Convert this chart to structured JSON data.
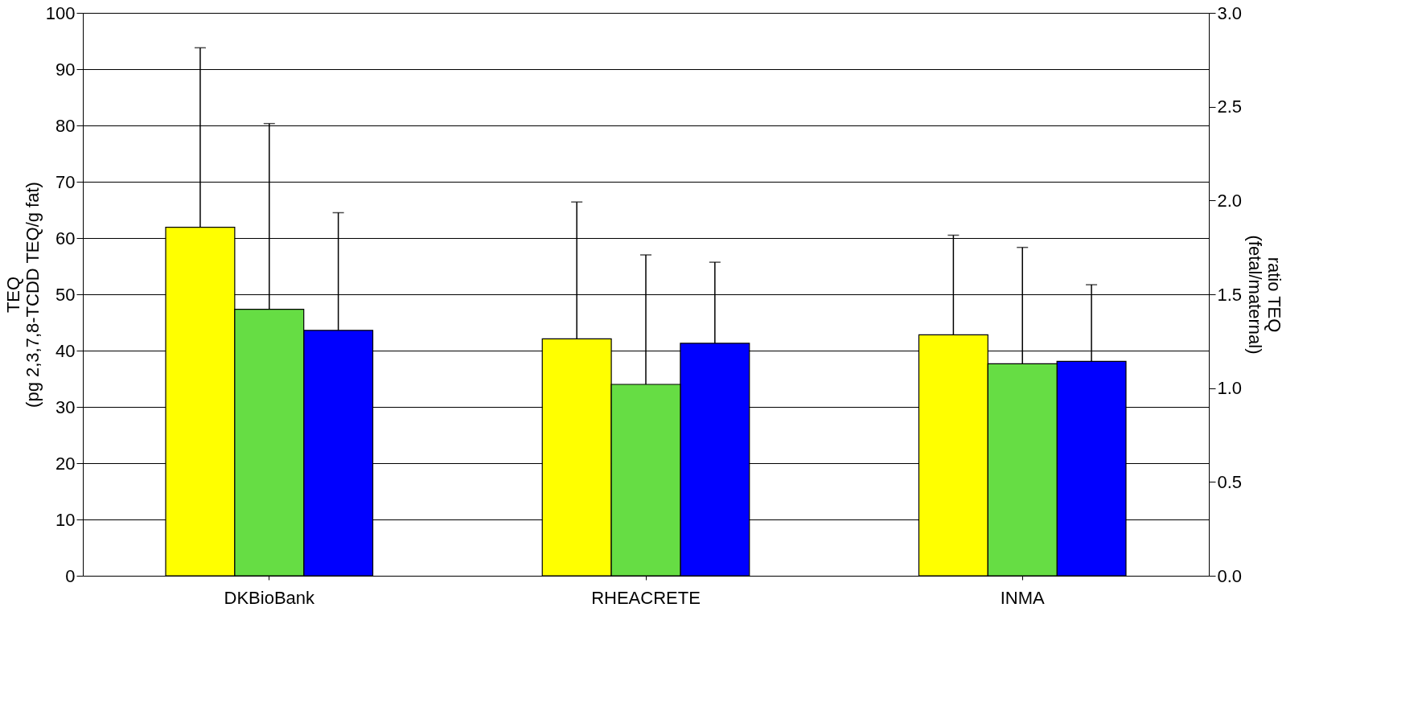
{
  "chart_data": {
    "type": "bar",
    "ylabel": "TEQ\n(pg 2,3,7,8-TCDD TEQ/g fat)",
    "y2label": "ratio TEQ\n(fetal/maternal)",
    "categories": [
      "DKBioBank",
      "RHEACRETE",
      "INMA"
    ],
    "series": [
      {
        "color": "#ffff00",
        "values": [
          61.9,
          42.1,
          42.8
        ],
        "errors": [
          [
            61.9,
            93.8
          ],
          [
            42.1,
            66.4
          ],
          [
            42.8,
            60.5
          ]
        ]
      },
      {
        "color": "#66dd44",
        "axis": "y2",
        "values": [
          1.42,
          1.02,
          1.13
        ],
        "errors": [
          [
            1.42,
            2.41
          ],
          [
            1.02,
            1.71
          ],
          [
            1.13,
            1.75
          ]
        ]
      },
      {
        "color": "#0000ff",
        "values": [
          43.6,
          41.3,
          38.1
        ],
        "errors": [
          [
            43.6,
            64.5
          ],
          [
            41.3,
            55.7
          ],
          [
            38.1,
            51.7
          ]
        ]
      }
    ],
    "ylim": [
      0,
      100
    ],
    "yticks": [
      0,
      10,
      20,
      30,
      40,
      50,
      60,
      70,
      80,
      90,
      100
    ],
    "y2lim": [
      0,
      3
    ],
    "y2ticks": [
      {
        "value": 0,
        "label": "0.0"
      },
      {
        "value": 0.5,
        "label": "0.5"
      },
      {
        "value": 1,
        "label": "1.0"
      },
      {
        "value": 1.5,
        "label": "1.5"
      },
      {
        "value": 2,
        "label": "2.0"
      },
      {
        "value": 2.5,
        "label": "2.5"
      },
      {
        "value": 3,
        "label": "3.0"
      }
    ],
    "grid": "y"
  }
}
